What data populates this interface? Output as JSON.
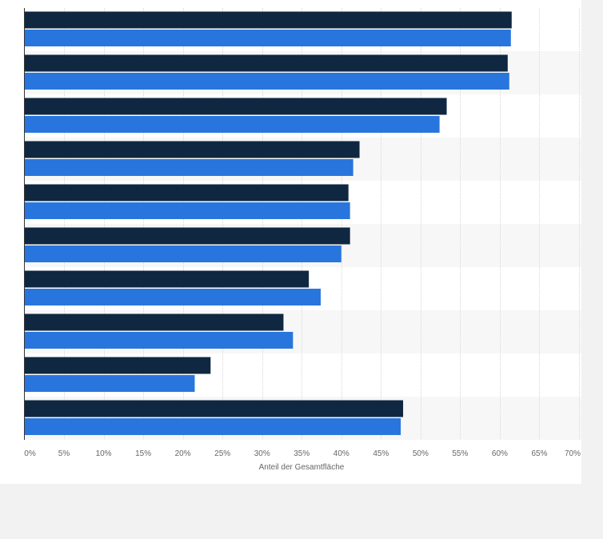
{
  "chart_data": {
    "type": "bar",
    "orientation": "horizontal",
    "title": "",
    "xlabel": "Anteil der Gesamtfläche",
    "ylabel": "",
    "xlim": [
      0,
      70
    ],
    "ticks": [
      "0%",
      "5%",
      "10%",
      "15%",
      "20%",
      "25%",
      "30%",
      "35%",
      "40%",
      "45%",
      "50%",
      "55%",
      "60%",
      "65%",
      "70%"
    ],
    "categories": [
      "",
      "",
      "",
      "",
      "",
      "",
      "",
      "",
      "",
      ""
    ],
    "series": [
      {
        "name": "",
        "color": "#0f2741",
        "values": [
          61.5,
          61.0,
          53.3,
          42.3,
          40.9,
          41.1,
          35.9,
          32.7,
          23.5,
          47.8
        ]
      },
      {
        "name": "",
        "color": "#2876dd",
        "values": [
          61.4,
          61.2,
          52.4,
          41.5,
          41.1,
          40.0,
          37.4,
          33.9,
          21.5,
          47.5
        ]
      }
    ],
    "grid": true,
    "legend": "none"
  }
}
